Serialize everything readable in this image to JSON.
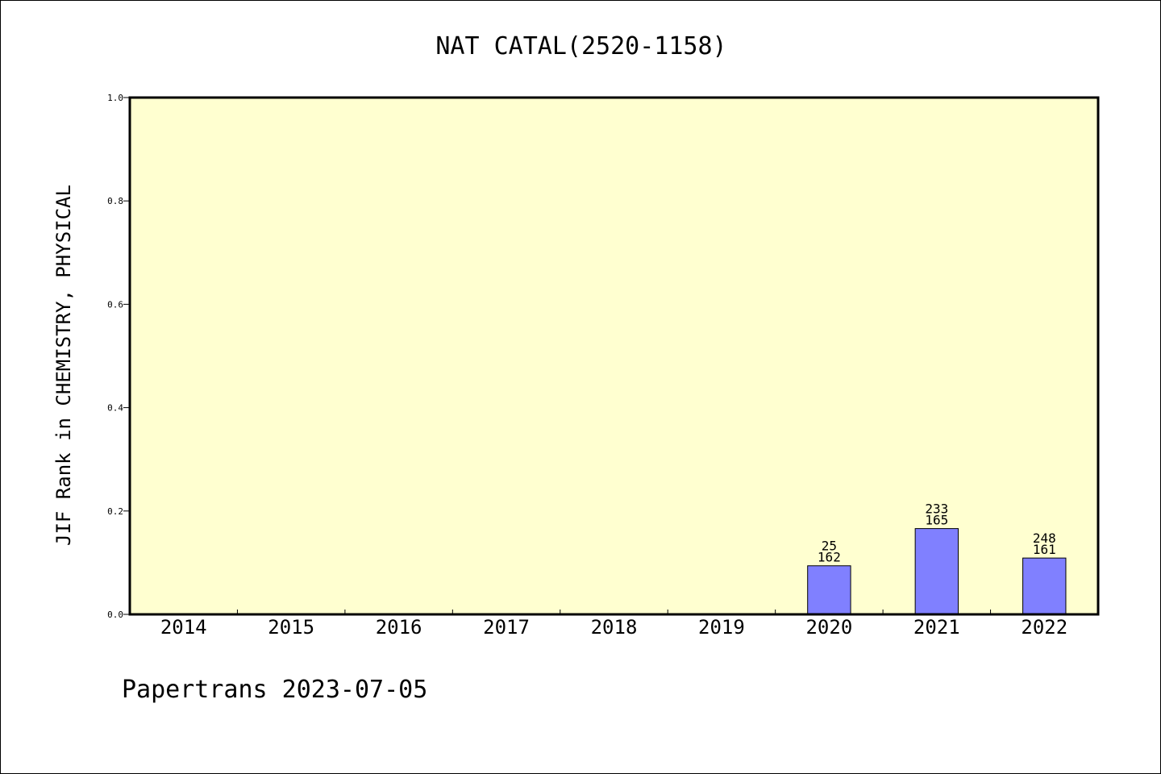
{
  "chart_data": {
    "type": "bar",
    "title": "NAT CATAL(2520-1158)",
    "ylabel": "JIF Rank in CHEMISTRY, PHYSICAL",
    "xlabel": "",
    "categories": [
      "2014",
      "2015",
      "2016",
      "2017",
      "2018",
      "2019",
      "2020",
      "2021",
      "2022"
    ],
    "values": [
      null,
      null,
      null,
      null,
      null,
      null,
      0.094,
      0.166,
      0.109
    ],
    "bar_labels": [
      null,
      null,
      null,
      null,
      null,
      null,
      {
        "top": "25",
        "bottom": "162"
      },
      {
        "top": "233",
        "bottom": "165"
      },
      {
        "top": "248",
        "bottom": "161"
      }
    ],
    "ylim": [
      0,
      1.0
    ],
    "yticks": [
      "0.0",
      "0.2",
      "0.4",
      "0.6",
      "0.8",
      "1.0"
    ],
    "grid": false,
    "legend": "none",
    "colors": {
      "plot_background": "#FFFFD0",
      "bar_fill": "#8080FF",
      "bar_stroke": "#000000",
      "axis": "#000000"
    }
  },
  "footer": {
    "text": "Papertrans 2023-07-05"
  }
}
